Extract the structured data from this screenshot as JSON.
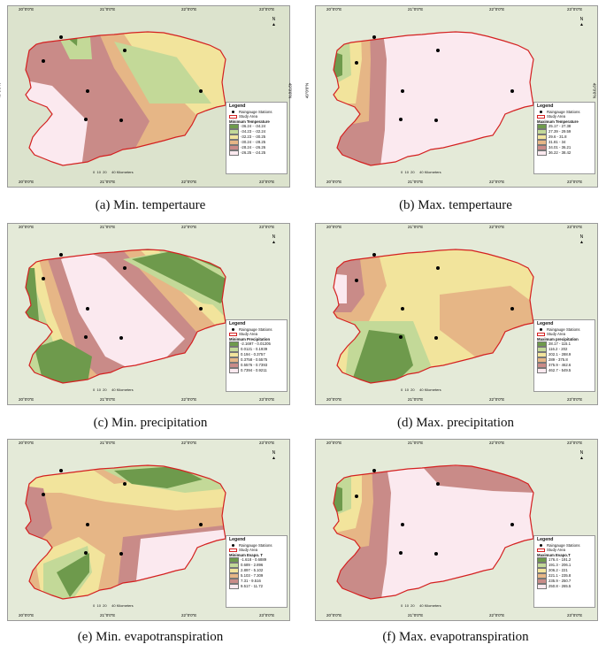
{
  "axes": {
    "top": [
      "20°0'0\"E",
      "21°0'0\"E",
      "22°0'0\"E",
      "23°0'0\"E"
    ],
    "bottom": [
      "20°0'0\"E",
      "21°0'0\"E",
      "22°0'0\"E",
      "23°0'0\"E"
    ],
    "lat": "49°0'0\"N"
  },
  "legend_common": {
    "title": "Legend",
    "stations": "Raingauge Stations",
    "study": "Study Area"
  },
  "scale": {
    "ticks": [
      "0",
      "10",
      "20",
      "40 Kilometers"
    ]
  },
  "north": "N",
  "panels": [
    {
      "caption": "(a) Min. tempertaure",
      "legend_title": "Minimum Temperature",
      "classes": [
        "-36.24 - -34.24",
        "-34.23 - -32.24",
        "-32.23 - -30.25",
        "-30.24 - -28.25",
        "-28.24 - -26.26",
        "-26.25 - -24.25"
      ],
      "colors": [
        "#6e9a4c",
        "#c3d998",
        "#f2e49c",
        "#e6b686",
        "#c98b88",
        "#fbe9ef"
      ]
    },
    {
      "caption": "(b) Max. tempertaure",
      "legend_title": "Maximum Temperature",
      "classes": [
        "25.17 - 27.38",
        "27.39 - 29.59",
        "29.6 - 31.8",
        "31.81 - 34",
        "34.01 - 36.21",
        "36.22 - 38.42"
      ],
      "colors": [
        "#6e9a4c",
        "#c3d998",
        "#f2e49c",
        "#e6b686",
        "#c98b88",
        "#fbe9ef"
      ]
    },
    {
      "caption": "(c) Min. precipitation",
      "legend_title": "Minimum Precipitation",
      "classes": [
        "-2.1697 - 0.01205",
        "0.0121 - 0.1939",
        "0.194 - 0.3757",
        "0.3758 - 0.5575",
        "0.5576 - 0.7393",
        "0.7394 - 0.9211"
      ],
      "colors": [
        "#6e9a4c",
        "#c3d998",
        "#f2e49c",
        "#e6b686",
        "#c98b88",
        "#fbe9ef"
      ]
    },
    {
      "caption": "(d) Max. precipitation",
      "legend_title": "Maximum precipitation",
      "classes": [
        "28.17 - 115.1",
        "116.2 - 202",
        "202.1 - 288.9",
        "289 - 375.8",
        "375.9 - 462.6",
        "462.7 - 549.5"
      ],
      "colors": [
        "#6e9a4c",
        "#c3d998",
        "#f2e49c",
        "#e6b686",
        "#c98b88",
        "#fbe9ef"
      ]
    },
    {
      "caption": "(e) Min. evapotranspiration",
      "legend_title": "Minimum Evapo. T",
      "classes": [
        "-1.618 - 0.6889",
        "0.689 - 2.896",
        "2.897 - 5.102",
        "5.103 - 7.309",
        "7.31 - 9.516",
        "9.517 - 11.72"
      ],
      "colors": [
        "#6e9a4c",
        "#c3d998",
        "#f2e49c",
        "#e6b686",
        "#c98b88",
        "#fbe9ef"
      ]
    },
    {
      "caption": "(f) Max. evapotranspiration",
      "legend_title": "Maximum Evapo.T",
      "classes": [
        "176.4 - 191.2",
        "191.3 - 206.1",
        "206.2 - 221",
        "221.1 - 235.8",
        "235.9 - 250.7",
        "250.8 - 265.5"
      ],
      "colors": [
        "#6e9a4c",
        "#c3d998",
        "#f2e49c",
        "#e6b686",
        "#c98b88",
        "#fbe9ef"
      ]
    }
  ]
}
